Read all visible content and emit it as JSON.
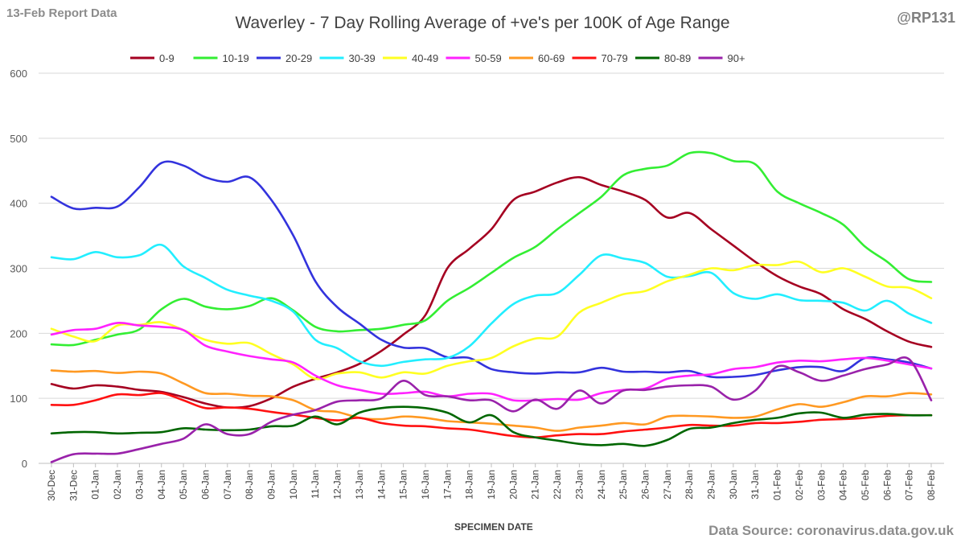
{
  "header": {
    "corner_left": "13-Feb Report Data",
    "corner_right": "@RP131",
    "source": "Data Source: coronavirus.data.gov.uk"
  },
  "chart_data": {
    "type": "line",
    "title": "Waverley - 7 Day Rolling Average of +ve's per 100K of Age Range",
    "xlabel": "SPECIMEN DATE",
    "ylabel": "",
    "ylim": [
      0,
      600
    ],
    "yticks": [
      0,
      100,
      200,
      300,
      400,
      500,
      600
    ],
    "grid": true,
    "legend_position": "top",
    "categories": [
      "30-Dec",
      "31-Dec",
      "01-Jan",
      "02-Jan",
      "03-Jan",
      "04-Jan",
      "05-Jan",
      "06-Jan",
      "07-Jan",
      "08-Jan",
      "09-Jan",
      "10-Jan",
      "11-Jan",
      "12-Jan",
      "13-Jan",
      "14-Jan",
      "15-Jan",
      "16-Jan",
      "17-Jan",
      "18-Jan",
      "19-Jan",
      "20-Jan",
      "21-Jan",
      "22-Jan",
      "23-Jan",
      "24-Jan",
      "25-Jan",
      "26-Jan",
      "27-Jan",
      "28-Jan",
      "29-Jan",
      "30-Jan",
      "31-Jan",
      "01-Feb",
      "02-Feb",
      "03-Feb",
      "04-Feb",
      "05-Feb",
      "06-Feb",
      "07-Feb",
      "08-Feb"
    ],
    "series": [
      {
        "name": "0-9",
        "color": "#a50021",
        "values": [
          122,
          115,
          120,
          118,
          113,
          110,
          102,
          92,
          86,
          88,
          100,
          118,
          130,
          140,
          153,
          173,
          198,
          228,
          300,
          330,
          360,
          405,
          418,
          432,
          440,
          428,
          418,
          405,
          378,
          385,
          360,
          335,
          310,
          288,
          272,
          260,
          237,
          222,
          203,
          187,
          179
        ]
      },
      {
        "name": "10-19",
        "color": "#33ee33",
        "values": [
          183,
          182,
          190,
          198,
          206,
          237,
          253,
          241,
          237,
          242,
          254,
          235,
          210,
          203,
          205,
          207,
          213,
          220,
          250,
          270,
          293,
          316,
          333,
          360,
          385,
          410,
          443,
          453,
          458,
          477,
          477,
          465,
          460,
          418,
          400,
          385,
          367,
          333,
          310,
          283,
          279
        ]
      },
      {
        "name": "20-29",
        "color": "#3333dd",
        "values": [
          410,
          392,
          393,
          395,
          425,
          462,
          458,
          440,
          433,
          440,
          405,
          350,
          280,
          240,
          215,
          190,
          178,
          177,
          163,
          162,
          145,
          140,
          138,
          140,
          140,
          147,
          141,
          141,
          140,
          142,
          133,
          133,
          136,
          143,
          148,
          148,
          142,
          162,
          160,
          155,
          146
        ]
      },
      {
        "name": "30-39",
        "color": "#22eeff",
        "values": [
          317,
          314,
          325,
          317,
          320,
          336,
          303,
          285,
          267,
          258,
          250,
          233,
          190,
          177,
          157,
          150,
          156,
          160,
          162,
          180,
          215,
          245,
          258,
          262,
          290,
          320,
          315,
          308,
          287,
          288,
          293,
          262,
          253,
          260,
          251,
          250,
          247,
          235,
          250,
          230,
          216
        ]
      },
      {
        "name": "40-49",
        "color": "#ffff22",
        "values": [
          207,
          195,
          188,
          212,
          213,
          217,
          205,
          190,
          184,
          185,
          168,
          152,
          130,
          138,
          140,
          132,
          140,
          138,
          150,
          157,
          162,
          180,
          192,
          195,
          232,
          247,
          260,
          265,
          280,
          290,
          300,
          297,
          305,
          305,
          310,
          294,
          300,
          287,
          272,
          270,
          254
        ]
      },
      {
        "name": "50-59",
        "color": "#ff22ff",
        "values": [
          198,
          205,
          207,
          216,
          212,
          210,
          205,
          181,
          172,
          165,
          160,
          155,
          135,
          120,
          113,
          107,
          108,
          110,
          103,
          107,
          107,
          97,
          97,
          99,
          98,
          108,
          113,
          115,
          130,
          135,
          137,
          145,
          148,
          155,
          158,
          157,
          160,
          162,
          158,
          152,
          146
        ]
      },
      {
        "name": "60-69",
        "color": "#ff9922",
        "values": [
          143,
          141,
          142,
          139,
          141,
          138,
          123,
          108,
          107,
          104,
          103,
          97,
          82,
          79,
          70,
          68,
          72,
          70,
          65,
          63,
          61,
          58,
          55,
          50,
          55,
          58,
          62,
          60,
          72,
          73,
          72,
          70,
          72,
          83,
          91,
          87,
          94,
          103,
          103,
          108,
          106
        ]
      },
      {
        "name": "70-79",
        "color": "#ff1111",
        "values": [
          90,
          90,
          97,
          106,
          105,
          108,
          97,
          85,
          86,
          84,
          79,
          75,
          70,
          66,
          70,
          62,
          58,
          57,
          54,
          52,
          47,
          42,
          40,
          43,
          45,
          45,
          49,
          52,
          55,
          59,
          58,
          58,
          62,
          62,
          64,
          67,
          68,
          70,
          73,
          74,
          74
        ]
      },
      {
        "name": "80-89",
        "color": "#006600",
        "values": [
          46,
          48,
          48,
          46,
          47,
          48,
          54,
          52,
          51,
          52,
          57,
          58,
          72,
          60,
          78,
          85,
          87,
          85,
          78,
          63,
          74,
          48,
          40,
          35,
          30,
          28,
          30,
          27,
          36,
          53,
          55,
          62,
          67,
          70,
          77,
          78,
          70,
          75,
          76,
          74,
          74
        ]
      },
      {
        "name": "90+",
        "color": "#9922aa",
        "values": [
          2,
          14,
          15,
          15,
          22,
          30,
          38,
          60,
          45,
          45,
          64,
          75,
          82,
          95,
          97,
          100,
          127,
          105,
          103,
          97,
          97,
          80,
          98,
          84,
          112,
          92,
          112,
          113,
          118,
          120,
          118,
          98,
          112,
          149,
          140,
          127,
          135,
          145,
          152,
          160,
          97
        ]
      }
    ]
  }
}
